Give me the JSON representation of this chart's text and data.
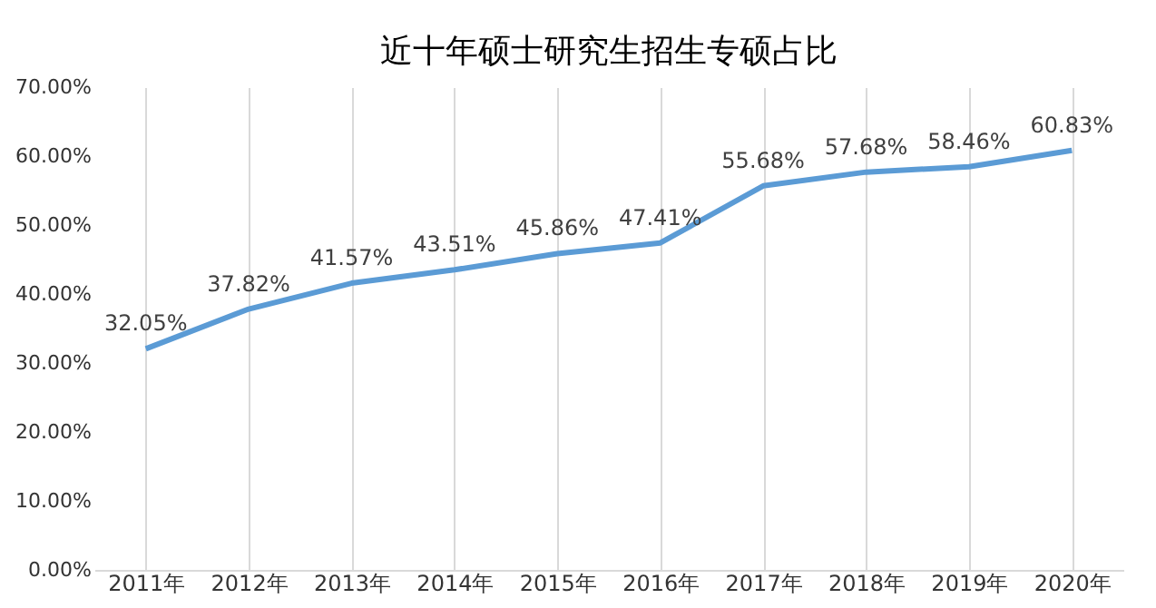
{
  "chart_data": {
    "type": "line",
    "title": "近十年硕士研究生招生专硕占比",
    "categories": [
      "2011年",
      "2012年",
      "2013年",
      "2014年",
      "2015年",
      "2016年",
      "2017年",
      "2018年",
      "2019年",
      "2020年"
    ],
    "series": [
      {
        "color": "#5b9bd5",
        "values": [
          32.05,
          37.82,
          41.57,
          43.51,
          45.86,
          47.41,
          55.68,
          57.68,
          58.46,
          60.83
        ],
        "value_labels": [
          "32.05%",
          "37.82%",
          "41.57%",
          "43.51%",
          "45.86%",
          "47.41%",
          "55.68%",
          "57.68%",
          "58.46%",
          "60.83%"
        ]
      }
    ],
    "ylim": [
      0,
      70
    ],
    "yticks": [
      {
        "value": 0,
        "label": "0.00%"
      },
      {
        "value": 10,
        "label": "10.00%"
      },
      {
        "value": 20,
        "label": "20.00%"
      },
      {
        "value": 30,
        "label": "30.00%"
      },
      {
        "value": 40,
        "label": "40.00%"
      },
      {
        "value": 50,
        "label": "50.00%"
      },
      {
        "value": 60,
        "label": "60.00%"
      },
      {
        "value": 70,
        "label": "70.00%"
      }
    ],
    "grid": "x",
    "marker": "none",
    "line_style": "solid"
  }
}
